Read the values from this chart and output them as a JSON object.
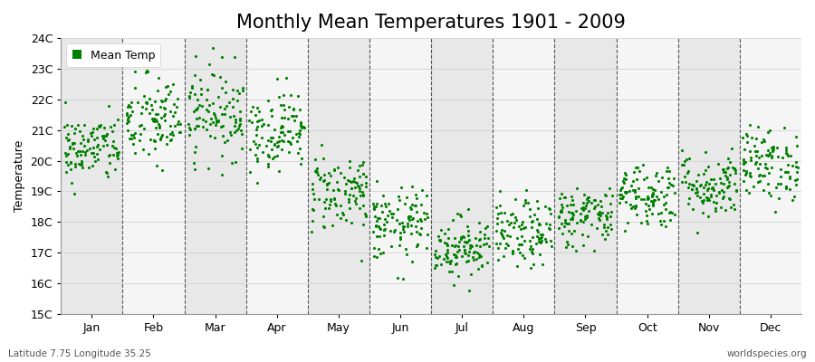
{
  "title": "Monthly Mean Temperatures 1901 - 2009",
  "ylabel": "Temperature",
  "xlabel": "",
  "subtitle_left": "Latitude 7.75 Longitude 35.25",
  "subtitle_right": "worldspecies.org",
  "ylim": [
    15,
    24
  ],
  "yticks": [
    15,
    16,
    17,
    18,
    19,
    20,
    21,
    22,
    23,
    24
  ],
  "ytick_labels": [
    "15C",
    "16C",
    "17C",
    "18C",
    "19C",
    "20C",
    "21C",
    "22C",
    "23C",
    "24C"
  ],
  "months": [
    "Jan",
    "Feb",
    "Mar",
    "Apr",
    "May",
    "Jun",
    "Jul",
    "Aug",
    "Sep",
    "Oct",
    "Nov",
    "Dec"
  ],
  "dot_color": "#008000",
  "dot_size": 5,
  "background_color": "#ffffff",
  "plot_bg_color": "#e8e8e8",
  "stripe_color_odd": "#e8e8e8",
  "stripe_color_even": "#f5f5f5",
  "legend_label": "Mean Temp",
  "seed": 42,
  "n_years": 109,
  "monthly_means": [
    20.4,
    21.3,
    21.6,
    21.0,
    19.0,
    17.9,
    17.2,
    17.6,
    18.2,
    18.9,
    19.2,
    19.9
  ],
  "monthly_stds": [
    0.55,
    0.75,
    0.75,
    0.65,
    0.65,
    0.6,
    0.5,
    0.55,
    0.5,
    0.55,
    0.55,
    0.6
  ],
  "title_fontsize": 15,
  "axis_fontsize": 9,
  "tick_fontsize": 9,
  "dashed_line_color": "#555555",
  "grid_line_color": "#cccccc"
}
